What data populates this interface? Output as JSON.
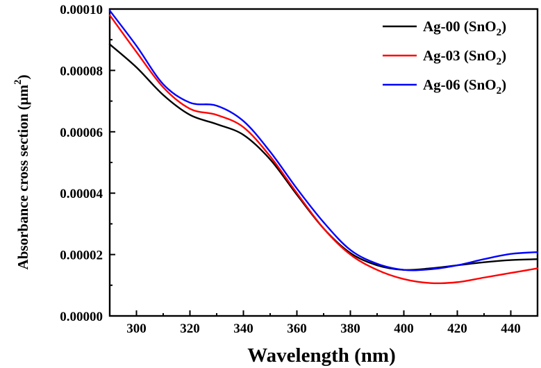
{
  "chart_data": {
    "type": "line",
    "title": "",
    "xlabel": "Wavelength (nm)",
    "ylabel": "Absorbance cross section (μm²)",
    "ylabel_parts": {
      "main": "Absorbance cross section (μm",
      "sup": "2",
      "close": ")"
    },
    "xlim": [
      290,
      450
    ],
    "ylim": [
      0,
      0.0001
    ],
    "x_ticks": [
      300,
      320,
      340,
      360,
      380,
      400,
      420,
      440
    ],
    "y_ticks": [
      "0.00000",
      "0.00002",
      "0.00004",
      "0.00006",
      "0.00008",
      "0.00010"
    ],
    "legend_position": "top-right",
    "series": [
      {
        "name": "Ag-00 (SnO2)",
        "label_main": "Ag-00 (SnO",
        "label_sub": "2",
        "label_close": ")",
        "color": "#000000",
        "x": [
          290,
          300,
          310,
          320,
          330,
          340,
          350,
          360,
          370,
          380,
          390,
          400,
          410,
          420,
          430,
          440,
          450
        ],
        "y": [
          8.85e-05,
          8.1e-05,
          7.2e-05,
          6.55e-05,
          6.25e-05,
          5.9e-05,
          5.1e-05,
          3.95e-05,
          2.85e-05,
          2.05e-05,
          1.65e-05,
          1.5e-05,
          1.55e-05,
          1.65e-05,
          1.75e-05,
          1.82e-05,
          1.85e-05
        ]
      },
      {
        "name": "Ag-03 (SnO2)",
        "label_main": "Ag-03 (SnO",
        "label_sub": "2",
        "label_close": ")",
        "color": "#ff0000",
        "x": [
          290,
          300,
          310,
          320,
          330,
          340,
          350,
          360,
          370,
          380,
          390,
          400,
          410,
          420,
          430,
          440,
          450
        ],
        "y": [
          9.8e-05,
          8.6e-05,
          7.45e-05,
          6.75e-05,
          6.55e-05,
          6.15e-05,
          5.2e-05,
          4e-05,
          2.85e-05,
          2e-05,
          1.5e-05,
          1.2e-05,
          1.07e-05,
          1.1e-05,
          1.25e-05,
          1.4e-05,
          1.55e-05
        ]
      },
      {
        "name": "Ag-06 (SnO2)",
        "label_main": "Ag-06 (SnO",
        "label_sub": "2",
        "label_close": ")",
        "color": "#0000ff",
        "x": [
          290,
          300,
          310,
          320,
          330,
          340,
          350,
          360,
          370,
          380,
          390,
          400,
          410,
          420,
          430,
          440,
          450
        ],
        "y": [
          9.95e-05,
          8.8e-05,
          7.55e-05,
          6.95e-05,
          6.85e-05,
          6.35e-05,
          5.35e-05,
          4.15e-05,
          3.05e-05,
          2.15e-05,
          1.7e-05,
          1.5e-05,
          1.52e-05,
          1.65e-05,
          1.85e-05,
          2.02e-05,
          2.08e-05
        ]
      }
    ]
  }
}
